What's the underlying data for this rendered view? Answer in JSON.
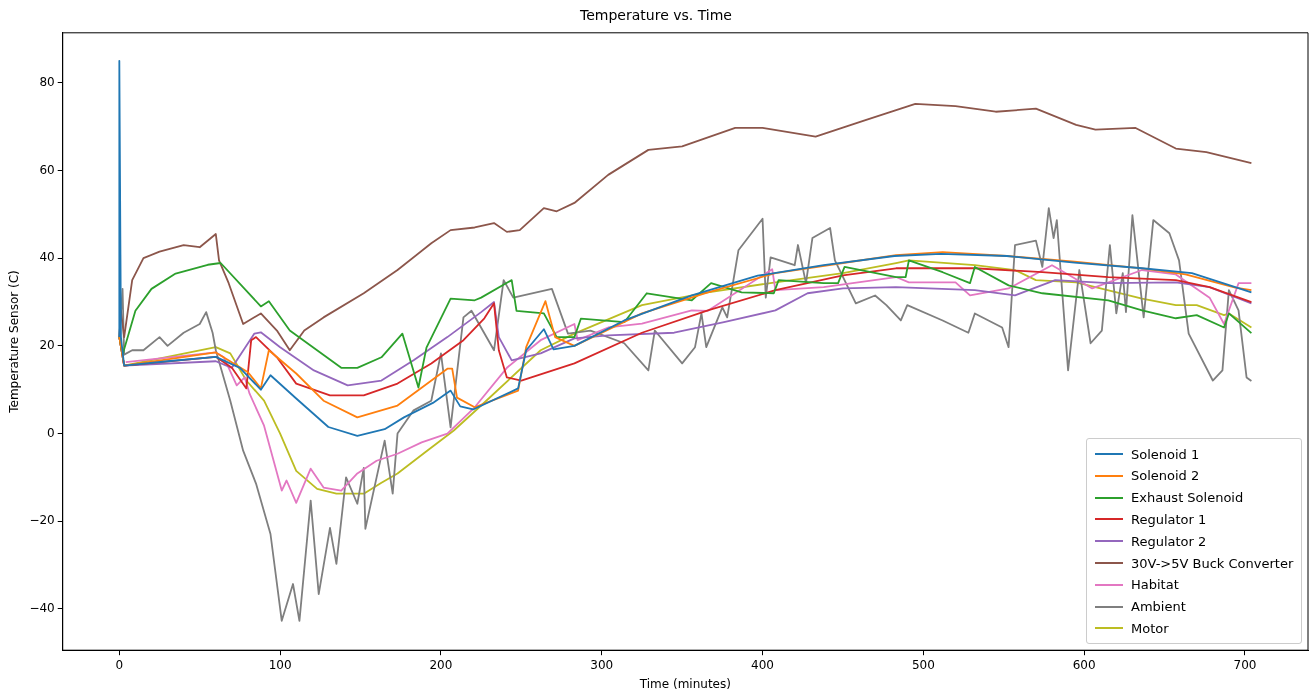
{
  "chart_data": {
    "type": "line",
    "title": "Temperature vs. Time",
    "xlabel": "Time (minutes)",
    "ylabel": "Temperature Sensor (C)",
    "xlim": [
      -35.2,
      739.2
    ],
    "ylim": [
      -49.4,
      91.4
    ],
    "xticks": [
      0,
      100,
      200,
      300,
      400,
      500,
      600,
      700
    ],
    "yticks": [
      -40,
      -20,
      0,
      20,
      40,
      60,
      80
    ],
    "grid": false,
    "legend": "bottom right",
    "marker": "none",
    "line_style": "solid",
    "series": [
      {
        "name": "Solenoid 1",
        "color": "#1f77b4",
        "x": [
          0,
          0,
          1,
          3,
          30,
          60,
          75,
          88,
          94,
          110,
          130,
          148,
          165,
          177,
          195,
          206,
          212,
          220,
          248,
          253,
          264,
          270,
          283,
          314,
          356,
          397,
          438,
          482,
          511,
          552,
          594,
          636,
          667,
          694,
          704
        ],
        "values": [
          22,
          85,
          22,
          15.5,
          16.5,
          17.5,
          15,
          10,
          13.3,
          8,
          1.5,
          -0.5,
          1,
          3.7,
          7,
          9.8,
          6.2,
          5.5,
          10.3,
          19,
          23.8,
          19.2,
          20,
          25.8,
          31.5,
          36,
          38.4,
          40.5,
          41,
          40.5,
          39,
          37.7,
          36.6,
          33.4,
          32.2
        ]
      },
      {
        "name": "Solenoid 2",
        "color": "#ff7f0e",
        "x": [
          0,
          3,
          60,
          80,
          88,
          93,
          110,
          127,
          148,
          173,
          204,
          207,
          210,
          221,
          248,
          253,
          265,
          271,
          283,
          325,
          366,
          408,
          450,
          483,
          512,
          552,
          594,
          636,
          663,
          694,
          704
        ],
        "values": [
          22,
          15.5,
          18.5,
          14,
          10.3,
          19,
          13.7,
          7.5,
          3.7,
          6.4,
          14.8,
          14.8,
          8.2,
          6,
          9.8,
          19.7,
          30.2,
          22,
          20,
          27.4,
          32.2,
          36.6,
          38.9,
          40.7,
          41.4,
          40.5,
          39.2,
          37.7,
          36.3,
          33.3,
          32.7
        ]
      },
      {
        "name": "Exhaust Solenoid",
        "color": "#2ca02c",
        "x": [
          0,
          2,
          10,
          20,
          35,
          55,
          63,
          88,
          93,
          106,
          138,
          148,
          163,
          176,
          186,
          191,
          206,
          221,
          225,
          244,
          247,
          264,
          272,
          283,
          287,
          314,
          328,
          356,
          368,
          387,
          407,
          410,
          438,
          447,
          451,
          483,
          489,
          491,
          512,
          529,
          532,
          553,
          574,
          615,
          636,
          657,
          670,
          687,
          690,
          704
        ],
        "values": [
          22,
          18,
          28,
          33,
          36.5,
          38.5,
          38.9,
          29,
          30.2,
          23.5,
          15,
          15,
          17.4,
          22.8,
          10.5,
          19.6,
          30.8,
          30.4,
          31,
          35,
          28,
          27.4,
          22,
          22,
          26.2,
          25.4,
          32,
          30.4,
          34.3,
          32.2,
          32,
          35,
          34.3,
          34.3,
          38,
          35.7,
          35.7,
          39.5,
          36.8,
          34.3,
          38,
          33.8,
          32,
          30.4,
          28.1,
          26.3,
          27,
          24.2,
          27.4,
          22.9
        ]
      },
      {
        "name": "Regulator 1",
        "color": "#d62728",
        "x": [
          0,
          3,
          60,
          70,
          79,
          82,
          85,
          98,
          110,
          131,
          152,
          173,
          194,
          214,
          227,
          233,
          236,
          241,
          250,
          283,
          325,
          366,
          408,
          450,
          483,
          491,
          532,
          574,
          615,
          657,
          678,
          704
        ],
        "values": [
          22,
          15.5,
          17.5,
          15,
          10.3,
          21.3,
          22,
          17.4,
          11.4,
          8.7,
          8.7,
          11.4,
          16,
          21.3,
          26.3,
          29.7,
          19,
          12.8,
          12.1,
          16,
          23,
          28.1,
          32.7,
          36.1,
          37.7,
          37.7,
          37.7,
          36.8,
          35.7,
          35,
          33.4,
          30
        ]
      },
      {
        "name": "Regulator 2",
        "color": "#9467bd",
        "x": [
          0,
          3,
          60,
          70,
          84,
          88,
          100,
          121,
          142,
          163,
          183,
          204,
          225,
          233,
          236,
          244,
          262,
          283,
          304,
          345,
          376,
          408,
          428,
          450,
          483,
          532,
          557,
          582,
          615,
          657,
          678,
          704
        ],
        "values": [
          22,
          15.5,
          16.5,
          15,
          22.8,
          23.1,
          19.7,
          14.4,
          11,
          12.1,
          16.7,
          22,
          27.7,
          30,
          22,
          16.7,
          18.3,
          21.7,
          22.4,
          23,
          25.4,
          28.1,
          32,
          33.1,
          33.4,
          32.7,
          31.5,
          35,
          34.3,
          34.5,
          33.4,
          29.7
        ]
      },
      {
        "name": "30V->5V Buck Converter",
        "color": "#8c564b",
        "x": [
          0,
          1,
          3,
          8,
          15,
          25,
          40,
          50,
          60,
          62,
          68,
          77,
          88,
          98,
          106,
          115,
          127,
          152,
          173,
          194,
          206,
          221,
          233,
          241,
          249,
          264,
          272,
          283,
          304,
          329,
          350,
          383,
          400,
          433,
          464,
          495,
          520,
          545,
          570,
          595,
          607,
          632,
          657,
          676,
          704
        ],
        "values": [
          22,
          28,
          22,
          35,
          40,
          41.5,
          43,
          42.5,
          45.5,
          39.5,
          34.3,
          25,
          27.4,
          23.5,
          19,
          23.5,
          26.5,
          32,
          37.3,
          43.4,
          46.4,
          47,
          48,
          46,
          46.4,
          51.4,
          50.7,
          52.6,
          59,
          64.7,
          65.5,
          69.7,
          69.7,
          67.7,
          71.5,
          75.2,
          74.7,
          73.4,
          74.1,
          70.4,
          69.3,
          69.7,
          65,
          64.2,
          61.7
        ]
      },
      {
        "name": "Habitat",
        "color": "#e377c2",
        "x": [
          4,
          60,
          65,
          73,
          78,
          81,
          90,
          101,
          104,
          110,
          119,
          127,
          138,
          148,
          160,
          173,
          188,
          204,
          221,
          241,
          262,
          283,
          285,
          304,
          325,
          356,
          366,
          406,
          408,
          438,
          483,
          491,
          520,
          529,
          553,
          580,
          605,
          636,
          657,
          678,
          687,
          696,
          704
        ],
        "values": [
          16.3,
          18.5,
          17.4,
          11,
          12.8,
          9.1,
          1.8,
          -13,
          -10.7,
          -15.8,
          -8,
          -12.3,
          -13,
          -9.1,
          -6.2,
          -4.6,
          -2,
          0,
          6,
          15,
          21.3,
          25,
          21.3,
          24.2,
          25.1,
          28.1,
          28,
          37.5,
          32.7,
          33.4,
          35.7,
          34.5,
          34.5,
          31.5,
          33.1,
          38.4,
          33.1,
          37.3,
          36.3,
          31,
          25,
          34.3,
          34.3
        ]
      },
      {
        "name": "Ambient",
        "color": "#7f7f7f",
        "x": [
          0,
          2,
          3,
          8,
          15,
          25,
          30,
          40,
          50,
          54,
          58,
          60,
          69,
          77,
          85,
          94,
          101,
          108,
          112,
          119,
          124,
          131,
          135,
          141,
          148,
          152,
          153,
          165,
          170,
          173,
          183,
          194,
          200,
          206,
          214,
          219,
          233,
          239,
          245,
          269,
          279,
          293,
          314,
          329,
          333,
          350,
          358,
          362,
          365,
          375,
          378,
          385,
          400,
          402,
          405,
          420,
          422,
          427,
          431,
          442,
          445,
          458,
          470,
          477,
          486,
          490,
          512,
          528,
          532,
          549,
          553,
          557,
          570,
          574,
          578,
          581,
          583,
          590,
          597,
          604,
          611,
          616,
          620,
          624,
          626,
          630,
          637,
          643,
          653,
          659,
          665,
          680,
          686,
          690,
          696,
          701,
          704
        ],
        "values": [
          22,
          33,
          18,
          19,
          19,
          22,
          20,
          23,
          25,
          27.7,
          23,
          19,
          7.5,
          -3.9,
          -11.4,
          -22.9,
          -42.7,
          -34.3,
          -42.7,
          -15.3,
          -36.6,
          -21.5,
          -29.7,
          -10,
          -16,
          -7.8,
          -21.7,
          -1.6,
          -13.7,
          0,
          5.3,
          7.5,
          18.3,
          1.4,
          26.5,
          28,
          19,
          35,
          31,
          33,
          22.8,
          23.5,
          20.6,
          14.4,
          23.5,
          16,
          19.7,
          27.4,
          19.7,
          28.8,
          26.5,
          41.8,
          49,
          31,
          40.2,
          38.4,
          43,
          34.3,
          44.6,
          46.9,
          39.5,
          29.7,
          31.5,
          29.3,
          25.8,
          29.3,
          25.8,
          23,
          27.4,
          24.2,
          19.7,
          43,
          44,
          38,
          51.4,
          44.6,
          48.7,
          14.4,
          37.3,
          20.6,
          23.5,
          43,
          27.4,
          36.6,
          27.7,
          49.8,
          26.5,
          48.7,
          45.7,
          39.5,
          22.8,
          12.1,
          14.4,
          32.7,
          28.1,
          12.8,
          12
        ]
      },
      {
        "name": "Motor",
        "color": "#bcbd22",
        "x": [
          0,
          3,
          60,
          69,
          79,
          90,
          100,
          110,
          123,
          135,
          152,
          163,
          173,
          190,
          208,
          225,
          262,
          283,
          325,
          366,
          408,
          450,
          483,
          491,
          532,
          557,
          570,
          595,
          636,
          657,
          670,
          687,
          690,
          704
        ],
        "values": [
          22,
          15.5,
          19.7,
          18.3,
          12.1,
          7.5,
          0,
          -8.5,
          -12.6,
          -13.7,
          -13.7,
          -11.2,
          -9.1,
          -4.3,
          0.7,
          6.4,
          19,
          22.8,
          29.3,
          32.2,
          34.5,
          36.6,
          38.9,
          39.5,
          38.4,
          37.3,
          35,
          34.5,
          30.8,
          29.3,
          29.3,
          27,
          27.4,
          24.2
        ]
      }
    ]
  }
}
